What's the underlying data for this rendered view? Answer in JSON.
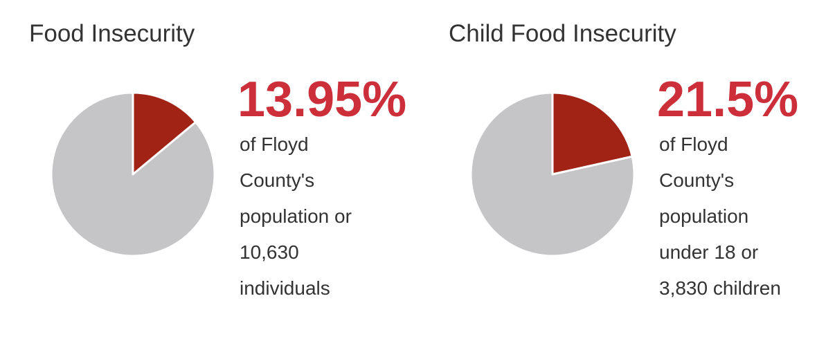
{
  "chart_data": [
    {
      "type": "pie",
      "title": "Food Insecurity",
      "categories": [
        null,
        null
      ],
      "values": [
        13.95,
        86.05
      ],
      "value_labels": [
        "13.95%",
        null
      ],
      "colors": [
        "#a02316",
        "#c5c5c7"
      ],
      "description": [
        "of Floyd",
        "County's",
        "population or",
        "10,630",
        "individuals"
      ]
    },
    {
      "type": "pie",
      "title": "Child Food Insecurity",
      "categories": [
        null,
        null
      ],
      "values": [
        21.5,
        78.5
      ],
      "value_labels": [
        "21.5%",
        null
      ],
      "colors": [
        "#a02316",
        "#c5c5c7"
      ],
      "description": [
        "of Floyd",
        "County's",
        "population",
        "under 18 or",
        "3,830 children"
      ]
    }
  ]
}
